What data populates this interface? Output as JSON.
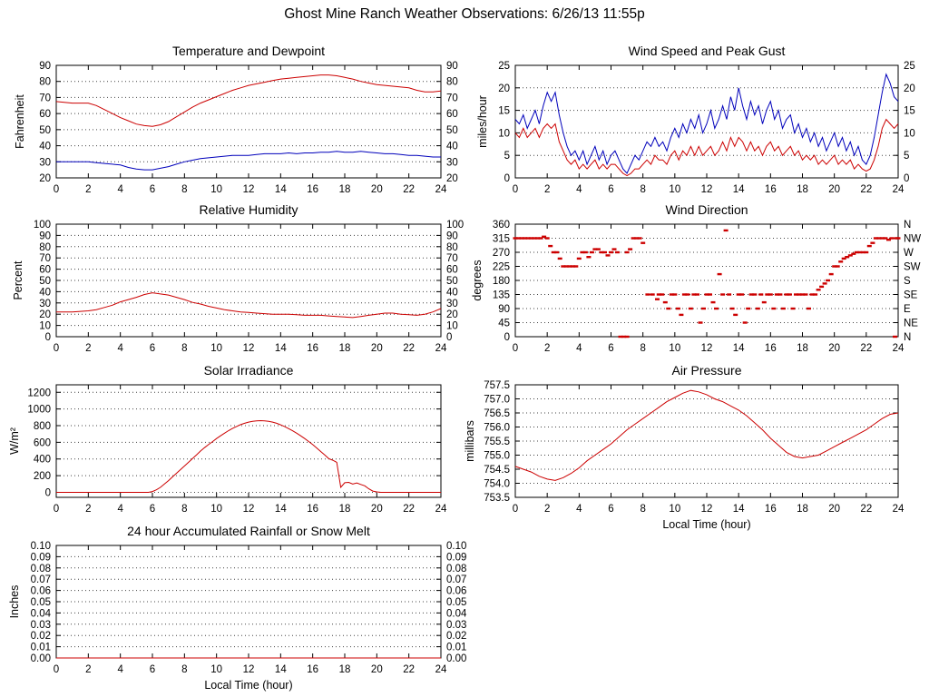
{
  "page_title": "Ghost Mine Ranch Weather Observations: 6/26/13 11:55p",
  "accent_colors": {
    "line_red": "#cc0000",
    "line_blue": "#0000bb",
    "frame": "#000000"
  },
  "chart_data": [
    {
      "id": "temperature-dewpoint",
      "type": "line",
      "title": "Temperature and Dewpoint",
      "ylabel": "Fahrenheit",
      "xlabel": "",
      "xlim": [
        0,
        24
      ],
      "xticks": [
        0,
        2,
        4,
        6,
        8,
        10,
        12,
        14,
        16,
        18,
        20,
        22,
        24
      ],
      "ylim": [
        20,
        90
      ],
      "yticks": [
        20,
        30,
        40,
        50,
        60,
        70,
        80,
        90
      ],
      "ytick_decimals": 0,
      "mirror_y": true,
      "grid": true,
      "series": [
        {
          "name": "temperature",
          "color": "#cc0000",
          "x_start": 0,
          "x_step": 0.5,
          "y": [
            67.5,
            67,
            66.5,
            66.5,
            66.5,
            65,
            62.5,
            60,
            57.5,
            55.5,
            53.5,
            52.5,
            52,
            53,
            55,
            58,
            61,
            64,
            66.5,
            68.5,
            70.5,
            72.5,
            74.5,
            76,
            77.5,
            78.5,
            79.5,
            80.5,
            81.5,
            82,
            82.5,
            83,
            83.5,
            84,
            84,
            83.5,
            82.5,
            81.5,
            80,
            79,
            78,
            77.5,
            77,
            76.5,
            76,
            74.5,
            73.5,
            73.5,
            74
          ]
        },
        {
          "name": "dewpoint",
          "color": "#0000bb",
          "x_start": 0,
          "x_step": 0.5,
          "y": [
            30,
            30,
            30,
            30,
            30,
            29.5,
            29,
            28.5,
            28,
            26.5,
            25.5,
            25,
            25,
            26,
            27,
            28.5,
            30,
            31,
            32,
            32.5,
            33,
            33.5,
            34,
            34,
            34,
            34.5,
            35,
            35,
            35,
            35.5,
            35,
            35.5,
            35.5,
            36,
            36,
            36.5,
            36,
            36,
            36.5,
            36,
            35.5,
            35,
            35,
            34.5,
            34,
            34,
            33.5,
            33,
            33
          ]
        }
      ]
    },
    {
      "id": "wind-speed-peak-gust",
      "type": "line",
      "title": "Wind Speed and Peak Gust",
      "ylabel": "miles/hour",
      "xlabel": "",
      "xlim": [
        0,
        24
      ],
      "xticks": [
        0,
        2,
        4,
        6,
        8,
        10,
        12,
        14,
        16,
        18,
        20,
        22,
        24
      ],
      "ylim": [
        0,
        25
      ],
      "yticks": [
        0,
        5,
        10,
        15,
        20,
        25
      ],
      "ytick_decimals": 0,
      "mirror_y": true,
      "grid": true,
      "series": [
        {
          "name": "peak-gust",
          "color": "#0000bb",
          "x_start": 0,
          "x_step": 0.25,
          "y": [
            13,
            12,
            14,
            11,
            13,
            15,
            12,
            16,
            19,
            17,
            19,
            14,
            10,
            7,
            5,
            6,
            4,
            6,
            3,
            5,
            7,
            4,
            6,
            3,
            5,
            6,
            4,
            2,
            1,
            3,
            5,
            4,
            6,
            8,
            7,
            9,
            7,
            8,
            6,
            9,
            11,
            9,
            12,
            10,
            13,
            11,
            14,
            10,
            12,
            15,
            11,
            13,
            16,
            13,
            18,
            15,
            20,
            16,
            13,
            17,
            14,
            16,
            12,
            15,
            17,
            13,
            15,
            11,
            13,
            14,
            10,
            12,
            9,
            11,
            8,
            10,
            7,
            9,
            6,
            8,
            10,
            7,
            9,
            6,
            8,
            5,
            7,
            4,
            3,
            5,
            9,
            14,
            19,
            23,
            21,
            18,
            17
          ]
        },
        {
          "name": "wind-speed",
          "color": "#cc0000",
          "x_start": 0,
          "x_step": 0.25,
          "y": [
            10,
            9,
            11,
            9,
            10,
            11,
            9,
            11,
            12,
            11,
            12,
            8,
            6,
            4,
            3,
            4,
            2,
            3,
            2,
            3,
            4,
            2,
            3,
            2,
            3,
            3,
            2,
            1,
            0.5,
            1,
            2,
            2,
            3,
            4,
            3,
            5,
            4,
            4,
            3,
            5,
            6,
            4,
            6,
            5,
            7,
            5,
            7,
            5,
            6,
            7,
            5,
            6,
            8,
            6,
            9,
            7,
            9,
            8,
            6,
            8,
            6,
            7,
            5,
            7,
            8,
            6,
            7,
            5,
            6,
            7,
            5,
            6,
            4,
            5,
            4,
            5,
            3,
            4,
            3,
            4,
            5,
            3,
            4,
            3,
            4,
            2,
            3,
            2,
            1.5,
            2,
            4,
            7,
            11,
            13,
            12,
            11,
            12
          ]
        }
      ]
    },
    {
      "id": "relative-humidity",
      "type": "line",
      "title": "Relative Humidity",
      "ylabel": "Percent",
      "xlabel": "",
      "xlim": [
        0,
        24
      ],
      "xticks": [
        0,
        2,
        4,
        6,
        8,
        10,
        12,
        14,
        16,
        18,
        20,
        22,
        24
      ],
      "ylim": [
        0,
        100
      ],
      "yticks": [
        0,
        10,
        20,
        30,
        40,
        50,
        60,
        70,
        80,
        90,
        100
      ],
      "ytick_decimals": 0,
      "mirror_y": true,
      "grid": true,
      "series": [
        {
          "name": "relative-humidity",
          "color": "#cc0000",
          "x_start": 0,
          "x_step": 0.5,
          "y": [
            22,
            22,
            22,
            22.5,
            23,
            24,
            26,
            28,
            31,
            33,
            35,
            37.5,
            39,
            38,
            37,
            35,
            33,
            30.5,
            29,
            27,
            25.5,
            24,
            23,
            22,
            21.5,
            21,
            20.5,
            20,
            20,
            20,
            19.5,
            19,
            19,
            19,
            18.5,
            18,
            17.5,
            17,
            18,
            19,
            20,
            21,
            21,
            20,
            19.5,
            19,
            20,
            22,
            25
          ]
        }
      ]
    },
    {
      "id": "wind-direction",
      "type": "scatter",
      "title": "Wind Direction",
      "ylabel": "degrees",
      "xlabel": "",
      "xlim": [
        0,
        24
      ],
      "xticks": [
        0,
        2,
        4,
        6,
        8,
        10,
        12,
        14,
        16,
        18,
        20,
        22,
        24
      ],
      "ylim": [
        0,
        360
      ],
      "yticks": [
        0,
        45,
        90,
        135,
        180,
        225,
        270,
        315,
        360
      ],
      "ytick_decimals": 0,
      "mirror_y": false,
      "right_labels": [
        "N",
        "NE",
        "E",
        "SE",
        "S",
        "SW",
        "W",
        "NW",
        "N"
      ],
      "grid": true,
      "series": [
        {
          "name": "wind-direction",
          "color": "#cc0000",
          "x": [
            0,
            0.2,
            0.4,
            0.6,
            0.8,
            1.0,
            1.2,
            1.4,
            1.6,
            1.8,
            2.0,
            2.2,
            2.4,
            2.6,
            2.8,
            3.0,
            3.2,
            3.4,
            3.6,
            3.8,
            4.0,
            4.2,
            4.4,
            4.6,
            4.8,
            5.0,
            5.2,
            5.4,
            5.6,
            5.8,
            6.0,
            6.2,
            6.4,
            6.6,
            6.8,
            7.0,
            7.0,
            7.2,
            7.4,
            7.6,
            7.8,
            8.0,
            8.3,
            8.6,
            8.9,
            9.0,
            9.2,
            9.4,
            9.6,
            9.8,
            10.0,
            10.2,
            10.4,
            10.6,
            10.8,
            11.0,
            11.2,
            11.4,
            11.6,
            11.8,
            12.0,
            12.2,
            12.4,
            12.6,
            12.8,
            13.0,
            13.2,
            13.4,
            13.6,
            13.8,
            14.0,
            14.2,
            14.4,
            14.6,
            14.8,
            15.0,
            15.2,
            15.4,
            15.6,
            15.8,
            16.0,
            16.2,
            16.4,
            16.6,
            16.8,
            17.0,
            17.2,
            17.4,
            17.6,
            17.8,
            18.0,
            18.2,
            18.4,
            18.6,
            18.8,
            19.0,
            19.2,
            19.4,
            19.6,
            19.8,
            20.0,
            20.2,
            20.4,
            20.6,
            20.8,
            21.0,
            21.2,
            21.4,
            21.6,
            21.8,
            22.0,
            22.2,
            22.4,
            22.6,
            22.8,
            23.0,
            23.2,
            23.4,
            23.6,
            23.8,
            23.9,
            24.0
          ],
          "y": [
            315,
            315,
            315,
            315,
            315,
            315,
            315,
            315,
            315,
            320,
            315,
            290,
            270,
            270,
            250,
            225,
            225,
            225,
            225,
            225,
            250,
            270,
            270,
            255,
            270,
            280,
            280,
            270,
            270,
            260,
            270,
            280,
            270,
            0,
            0,
            0,
            270,
            280,
            315,
            315,
            315,
            300,
            135,
            135,
            120,
            135,
            135,
            110,
            90,
            135,
            135,
            90,
            70,
            135,
            135,
            90,
            135,
            135,
            45,
            90,
            135,
            135,
            110,
            90,
            200,
            135,
            340,
            135,
            90,
            70,
            135,
            135,
            45,
            90,
            135,
            135,
            90,
            135,
            110,
            135,
            135,
            90,
            135,
            135,
            90,
            135,
            135,
            90,
            135,
            135,
            135,
            135,
            90,
            135,
            135,
            150,
            160,
            170,
            180,
            200,
            225,
            225,
            240,
            250,
            255,
            260,
            265,
            270,
            270,
            270,
            270,
            290,
            300,
            315,
            315,
            315,
            315,
            310,
            315,
            0,
            315,
            315
          ]
        }
      ]
    },
    {
      "id": "solar-irradiance",
      "type": "line",
      "title": "Solar Irradiance",
      "ylabel": "W/m²",
      "xlabel": "",
      "xlim": [
        0,
        24
      ],
      "xticks": [
        0,
        2,
        4,
        6,
        8,
        10,
        12,
        14,
        16,
        18,
        20,
        22,
        24
      ],
      "ylim": [
        -60,
        1290
      ],
      "yticks": [
        0,
        200,
        400,
        600,
        800,
        1000,
        1200
      ],
      "ytick_decimals": 0,
      "mirror_y": false,
      "grid": true,
      "series": [
        {
          "name": "solar-irradiance",
          "color": "#cc0000",
          "x_start": 0,
          "x_step": 0.25,
          "y": [
            0,
            0,
            0,
            0,
            0,
            0,
            0,
            0,
            0,
            0,
            0,
            0,
            0,
            0,
            0,
            0,
            0,
            0,
            0,
            0,
            0,
            0,
            0,
            0,
            10,
            30,
            60,
            100,
            140,
            185,
            228,
            272,
            316,
            360,
            405,
            450,
            495,
            535,
            572,
            608,
            645,
            678,
            710,
            740,
            766,
            790,
            812,
            828,
            842,
            852,
            858,
            860,
            858,
            852,
            842,
            828,
            810,
            788,
            764,
            738,
            710,
            678,
            645,
            610,
            572,
            532,
            490,
            448,
            405,
            385,
            360,
            60,
            115,
            120,
            100,
            112,
            95,
            78,
            42,
            15,
            5,
            0,
            0,
            0,
            0,
            0,
            0,
            0,
            0,
            0,
            0,
            0,
            0,
            0,
            0,
            0,
            0
          ]
        }
      ]
    },
    {
      "id": "air-pressure",
      "type": "line",
      "title": "Air Pressure",
      "ylabel": "millibars",
      "xlabel": "Local Time (hour)",
      "xlim": [
        0,
        24
      ],
      "xticks": [
        0,
        2,
        4,
        6,
        8,
        10,
        12,
        14,
        16,
        18,
        20,
        22,
        24
      ],
      "ylim": [
        753.5,
        757.5
      ],
      "yticks": [
        753.5,
        754.0,
        754.5,
        755.0,
        755.5,
        756.0,
        756.5,
        757.0,
        757.5
      ],
      "ytick_decimals": 1,
      "mirror_y": false,
      "grid": true,
      "series": [
        {
          "name": "air-pressure",
          "color": "#cc0000",
          "x_start": 0,
          "x_step": 0.5,
          "y": [
            754.6,
            754.5,
            754.4,
            754.25,
            754.15,
            754.1,
            754.2,
            754.35,
            754.55,
            754.8,
            755.0,
            755.2,
            755.4,
            755.65,
            755.9,
            756.1,
            756.3,
            756.5,
            756.7,
            756.9,
            757.05,
            757.2,
            757.3,
            757.25,
            757.15,
            757.0,
            756.9,
            756.75,
            756.6,
            756.4,
            756.15,
            755.9,
            755.6,
            755.35,
            755.1,
            754.95,
            754.9,
            754.95,
            755.0,
            755.15,
            755.3,
            755.45,
            755.6,
            755.75,
            755.9,
            756.1,
            756.3,
            756.45,
            756.5
          ]
        }
      ]
    },
    {
      "id": "rainfall",
      "type": "line",
      "title": "24 hour Accumulated Rainfall or Snow Melt",
      "ylabel": "Inches",
      "xlabel": "Local Time (hour)",
      "xlim": [
        0,
        24
      ],
      "xticks": [
        0,
        2,
        4,
        6,
        8,
        10,
        12,
        14,
        16,
        18,
        20,
        22,
        24
      ],
      "ylim": [
        0,
        0.1
      ],
      "yticks": [
        0.0,
        0.01,
        0.02,
        0.03,
        0.04,
        0.05,
        0.06,
        0.07,
        0.08,
        0.09,
        0.1
      ],
      "ytick_decimals": 2,
      "mirror_y": true,
      "grid": true,
      "series": [
        {
          "name": "accumulated-rainfall",
          "color": "#cc0000",
          "x": [
            0,
            24
          ],
          "y": [
            0,
            0
          ]
        }
      ]
    }
  ]
}
